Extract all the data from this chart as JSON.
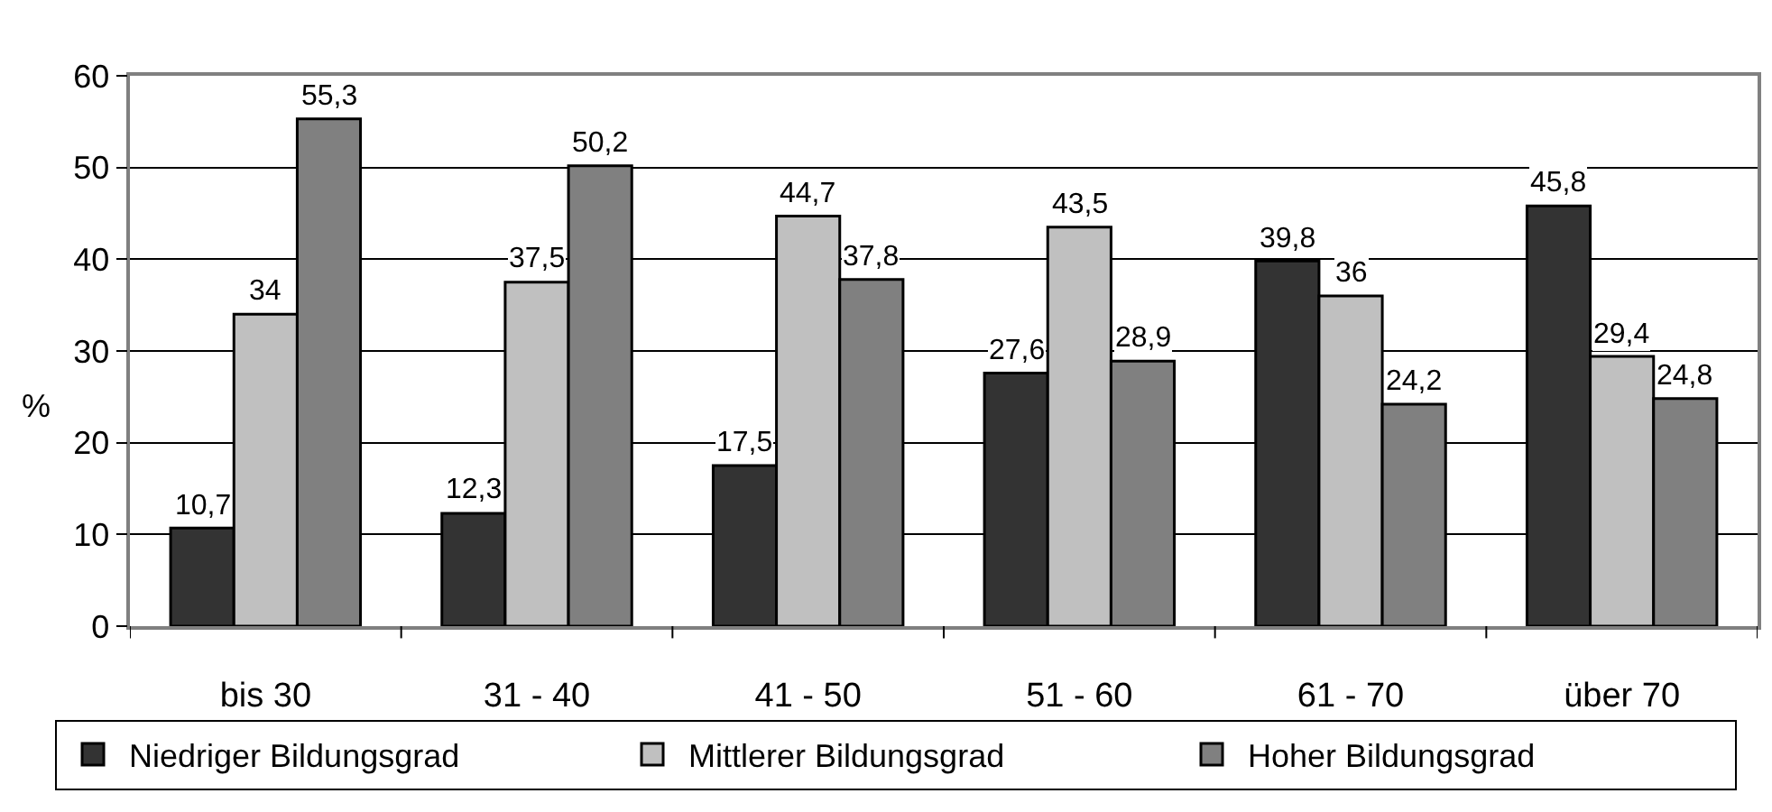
{
  "chart_data": {
    "type": "bar",
    "ylabel": "%",
    "categories": [
      "bis 30",
      "31 - 40",
      "41 - 50",
      "51 - 60",
      "61 - 70",
      "über 70"
    ],
    "ylim": [
      0,
      60
    ],
    "yticks": [
      0,
      10,
      20,
      30,
      40,
      50,
      60
    ],
    "grid": "y",
    "legend": "bottom",
    "series": [
      {
        "name": "Niedriger Bildungsgrad",
        "color": "#333333",
        "values": [
          10.7,
          12.3,
          17.5,
          27.6,
          39.8,
          45.8
        ],
        "value_labels": [
          "10,7",
          "12,3",
          "17,5",
          "27,6",
          "39,8",
          "45,8"
        ]
      },
      {
        "name": "Mittlerer Bildungsgrad",
        "color": "#c0c0c0",
        "values": [
          34,
          37.5,
          44.7,
          43.5,
          36,
          29.4
        ],
        "value_labels": [
          "34",
          "37,5",
          "44,7",
          "43,5",
          "36",
          "29,4"
        ]
      },
      {
        "name": "Hoher Bildungsgrad",
        "color": "#808080",
        "values": [
          55.3,
          50.2,
          37.8,
          28.9,
          24.2,
          24.8
        ],
        "value_labels": [
          "55,3",
          "50,2",
          "37,8",
          "28,9",
          "24,2",
          "24,8"
        ]
      }
    ]
  }
}
